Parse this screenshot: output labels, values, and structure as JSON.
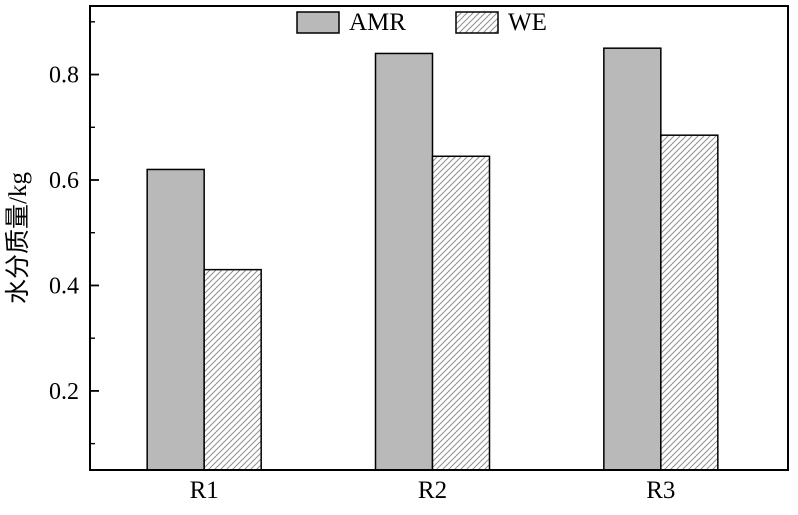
{
  "chart_data": {
    "type": "bar",
    "categories": [
      "R1",
      "R2",
      "R3"
    ],
    "series": [
      {
        "name": "AMR",
        "style": "solid",
        "fill": "#b9b9b9",
        "values": [
          0.62,
          0.84,
          0.85
        ]
      },
      {
        "name": "WE",
        "style": "hatch",
        "fill": "#ffffff",
        "values": [
          0.43,
          0.645,
          0.685
        ]
      }
    ],
    "title": "",
    "xlabel": "",
    "ylabel": "水分质量/kg",
    "ylim": [
      0.05,
      0.93
    ],
    "yticks": [
      0.2,
      0.4,
      0.6,
      0.8
    ],
    "minor_yticks": [
      0.1,
      0.3,
      0.5,
      0.7,
      0.9
    ],
    "legend_position": "top-center",
    "grid": false
  },
  "colors": {
    "axis": "#000000",
    "bar_gray": "#b9b9b9",
    "hatch_line": "#8f8f8f",
    "background": "#ffffff"
  }
}
